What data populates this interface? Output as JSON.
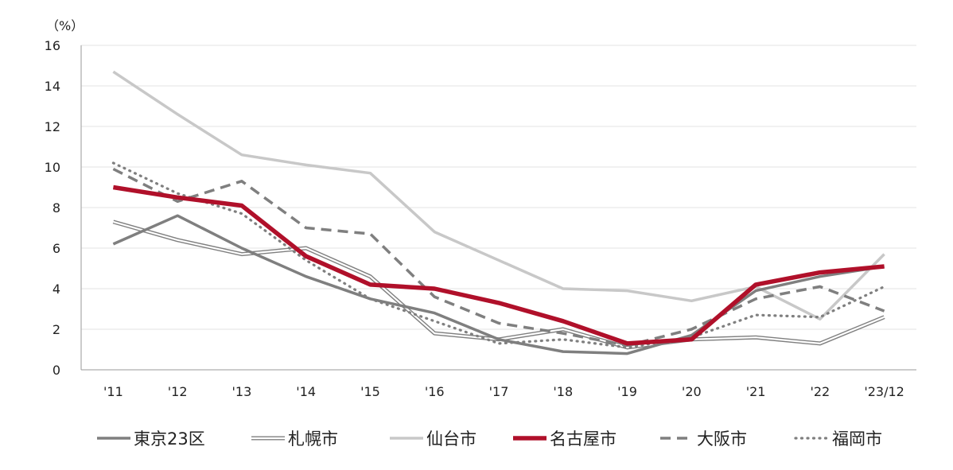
{
  "chart_data": {
    "type": "line",
    "unit_label": "（%）",
    "categories": [
      "'11",
      "'12",
      "'13",
      "'14",
      "'15",
      "'16",
      "'17",
      "'18",
      "'19",
      "'20",
      "'21",
      "'22",
      "'23/12"
    ],
    "ylim": [
      0,
      16
    ],
    "yticks": [
      "0",
      "2",
      "4",
      "6",
      "8",
      "10",
      "12",
      "14",
      "16"
    ],
    "grid": true,
    "legend_position": "bottom",
    "series": [
      {
        "name": "東京23区",
        "color": "#7f7f7f",
        "style": "solid",
        "values": [
          6.2,
          7.6,
          6.0,
          4.6,
          3.5,
          2.8,
          1.5,
          0.9,
          0.8,
          1.7,
          3.9,
          4.6,
          5.1
        ]
      },
      {
        "name": "札幌市",
        "color": "#7f7f7f",
        "style": "double",
        "values": [
          7.3,
          6.4,
          5.7,
          6.0,
          4.6,
          1.8,
          1.5,
          2.0,
          1.1,
          1.5,
          1.6,
          1.3,
          2.6
        ]
      },
      {
        "name": "仙台市",
        "color": "#c8c8c8",
        "style": "solid",
        "values": [
          14.7,
          12.6,
          10.6,
          10.1,
          9.7,
          6.8,
          5.4,
          4.0,
          3.9,
          3.4,
          4.1,
          2.5,
          5.7
        ]
      },
      {
        "name": "名古屋市",
        "color": "#b0102a",
        "style": "thick",
        "values": [
          9.0,
          8.5,
          8.1,
          5.6,
          4.2,
          4.0,
          3.3,
          2.4,
          1.3,
          1.5,
          4.2,
          4.8,
          5.1
        ]
      },
      {
        "name": "大阪市",
        "color": "#7f7f7f",
        "style": "dashed",
        "values": [
          9.9,
          8.3,
          9.3,
          7.0,
          6.7,
          3.6,
          2.3,
          1.8,
          1.2,
          2.0,
          3.5,
          4.1,
          2.9
        ]
      },
      {
        "name": "福岡市",
        "color": "#7f7f7f",
        "style": "dotted",
        "values": [
          10.2,
          8.7,
          7.7,
          5.4,
          3.5,
          2.4,
          1.3,
          1.5,
          1.1,
          1.6,
          2.7,
          2.6,
          4.1
        ]
      }
    ]
  }
}
